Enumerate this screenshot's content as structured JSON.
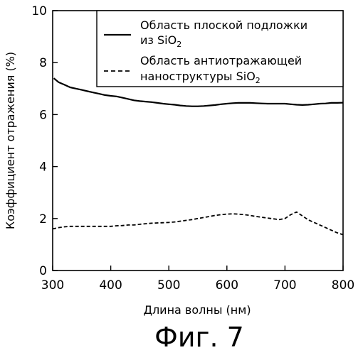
{
  "chart_data": {
    "type": "line",
    "xlabel": "Длина волны (нм)",
    "ylabel": "Коэффициент отражения (%)",
    "xlim": [
      300,
      800
    ],
    "ylim": [
      0,
      10
    ],
    "xticks": [
      "300",
      "400",
      "500",
      "600",
      "700",
      "800"
    ],
    "yticks": [
      "0",
      "2",
      "4",
      "6",
      "8",
      "10"
    ],
    "grid": false,
    "legend_position": "top-right",
    "series": [
      {
        "name_parts": [
          {
            "text": "Область плоской подложки",
            "sub": false
          },
          {
            "text": "из SiO",
            "sub": false
          },
          {
            "text": "2",
            "sub": true
          }
        ],
        "style": "solid",
        "color": "#000000",
        "x": [
          302,
          310,
          320,
          330,
          340,
          350,
          360,
          370,
          380,
          390,
          400,
          410,
          420,
          430,
          440,
          450,
          460,
          470,
          480,
          490,
          500,
          510,
          520,
          530,
          540,
          550,
          560,
          570,
          580,
          590,
          600,
          610,
          620,
          630,
          640,
          650,
          660,
          670,
          680,
          690,
          700,
          710,
          720,
          730,
          740,
          750,
          760,
          770,
          780,
          790,
          800
        ],
        "y": [
          7.4,
          7.25,
          7.15,
          7.05,
          7.0,
          6.95,
          6.9,
          6.85,
          6.8,
          6.75,
          6.72,
          6.7,
          6.65,
          6.6,
          6.55,
          6.52,
          6.5,
          6.48,
          6.45,
          6.42,
          6.4,
          6.38,
          6.35,
          6.33,
          6.32,
          6.32,
          6.33,
          6.35,
          6.37,
          6.4,
          6.42,
          6.44,
          6.45,
          6.45,
          6.45,
          6.44,
          6.43,
          6.42,
          6.42,
          6.42,
          6.42,
          6.4,
          6.38,
          6.37,
          6.38,
          6.4,
          6.42,
          6.43,
          6.45,
          6.45,
          6.46
        ]
      },
      {
        "name_parts": [
          {
            "text": "Область антиотражающей",
            "sub": false
          },
          {
            "text": "наноструктуры SiO",
            "sub": false
          },
          {
            "text": "2",
            "sub": true
          }
        ],
        "style": "dashed",
        "color": "#000000",
        "x": [
          300,
          310,
          320,
          330,
          340,
          350,
          360,
          370,
          380,
          390,
          400,
          410,
          420,
          430,
          440,
          450,
          460,
          470,
          480,
          490,
          500,
          510,
          520,
          530,
          540,
          550,
          560,
          570,
          580,
          590,
          600,
          610,
          620,
          630,
          640,
          650,
          660,
          670,
          680,
          690,
          700,
          710,
          720,
          730,
          740,
          750,
          760,
          770,
          780,
          790,
          800
        ],
        "y": [
          1.6,
          1.65,
          1.68,
          1.7,
          1.7,
          1.7,
          1.7,
          1.7,
          1.7,
          1.7,
          1.7,
          1.72,
          1.73,
          1.75,
          1.75,
          1.78,
          1.8,
          1.82,
          1.83,
          1.84,
          1.85,
          1.87,
          1.9,
          1.93,
          1.96,
          2.0,
          2.04,
          2.08,
          2.12,
          2.15,
          2.17,
          2.18,
          2.17,
          2.15,
          2.12,
          2.08,
          2.05,
          2.02,
          1.99,
          1.96,
          2.0,
          2.15,
          2.25,
          2.1,
          1.95,
          1.85,
          1.75,
          1.65,
          1.55,
          1.45,
          1.38
        ]
      }
    ]
  },
  "caption": "Фиг. 7"
}
